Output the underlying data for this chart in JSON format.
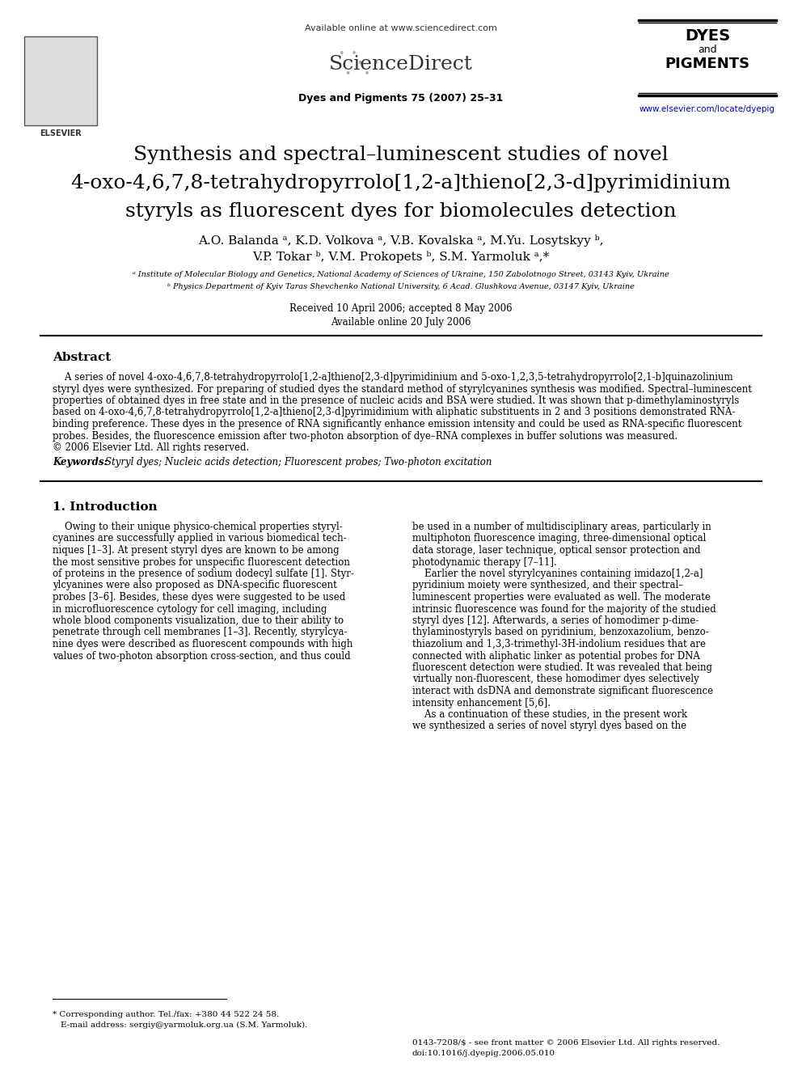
{
  "bg_color": "#ffffff",
  "header": {
    "available_online": "Available online at www.sciencedirect.com",
    "journal_name": "Dyes and Pigments 75 (2007) 25–31",
    "sd_text": "ScienceDirect",
    "journal_logo_text": "DYES\nand\nPIGMENTS",
    "website": "www.elsevier.com/locate/dyepig"
  },
  "title_lines": [
    "Synthesis and spectral–luminescent studies of novel",
    "4-oxo-4,6,7,8-tetrahydropyrrolo[1,2-a]thieno[2,3-d]pyrimidinium",
    "styryls as fluorescent dyes for biomolecules detection"
  ],
  "authors": "A.O. Balanda ᵃ, K.D. Volkova ᵃ, V.B. Kovalska ᵃ, M.Yu. Losytskyy ᵇ,",
  "authors2": "V.P. Tokar ᵇ, V.M. Prokopets ᵇ, S.M. Yarmoluk ᵃ,*",
  "affil_a": "ᵃ Institute of Molecular Biology and Genetics, National Academy of Sciences of Ukraine, 150 Zabolotnogo Street, 03143 Kyiv, Ukraine",
  "affil_b": "ᵇ Physics Department of Kyiv Taras Shevchenko National University, 6 Acad. Glushkova Avenue, 03147 Kyiv, Ukraine",
  "received": "Received 10 April 2006; accepted 8 May 2006",
  "available": "Available online 20 July 2006",
  "abstract_title": "Abstract",
  "abstract_text": "    A series of novel 4-oxo-4,6,7,8-tetrahydropyrrolo[1,2-a]thieno[2,3-d]pyrimidinium and 5-oxo-1,2,3,5-tetrahydropyrrolo[2,1-b]quinazolinium styryl dyes were synthesized. For preparing of studied dyes the standard method of styrylcyanines synthesis was modified. Spectral–luminescent properties of obtained dyes in free state and in the presence of nucleic acids and BSA were studied. It was shown that p-dimethylaminostyryls based on 4-oxo-4,6,7,8-tetrahydropyrrolo[1,2-a]thieno[2,3-d]pyrimidinium with aliphatic substituents in 2 and 3 positions demonstrated RNA-binding preference. These dyes in the presence of RNA significantly enhance emission intensity and could be used as RNA-specific fluorescent probes. Besides, the fluorescence emission after two-photon absorption of dye–RNA complexes in buffer solutions was measured.\n© 2006 Elsevier Ltd. All rights reserved.",
  "keywords_label": "Keywords: ",
  "keywords_text": "Styryl dyes; Nucleic acids detection; Fluorescent probes; Two-photon excitation",
  "section1_title": "1. Introduction",
  "intro_col1": "    Owing to their unique physico-chemical properties styryl-cyanines are successfully applied in various biomedical techniques [1–3]. At present styryl dyes are known to be among the most sensitive probes for unspecific fluorescent detection of proteins in the presence of sodium dodecyl sulfate [1]. Styrylcyanines were also proposed as DNA-specific fluorescent probes [3–6]. Besides, these dyes were suggested to be used in microfluorescence cytology for cell imaging, including whole blood components visualization, due to their ability to penetrate through cell membranes [1–3]. Recently, styrylcyanine dyes were described as fluorescent compounds with high values of two-photon absorption cross-section, and thus could",
  "intro_col2": "be used in a number of multidisciplinary areas, particularly in multiphoton fluorescence imaging, three-dimensional optical data storage, laser technique, optical sensor protection and photodynamic therapy [7–11].\n    Earlier the novel styrylcyanines containing imidazo[1,2-a] pyridinium moiety were synthesized, and their spectral-luminescent properties were evaluated as well. The moderate intrinsic fluorescence was found for the majority of the studied styryl dyes [12]. Afterwards, a series of homodimer p-dimethylaminostyryls based on pyridinium, benzoxazolium, benzothiazolium and 1,3,3-trimethyl-3H-indolium residues that are connected with aliphatic linker as potential probes for DNA fluorescent detection were studied. It was revealed that being virtually non-fluorescent, these homodimer dyes selectively interact with dsDNA and demonstrate significant fluorescence intensity enhancement [5,6].\n    As a continuation of these studies, in the present work we synthesized a series of novel styryl dyes based on the",
  "footer_left": "* Corresponding author. Tel./fax: +380 44 522 24 58.\n  E-mail address: sergiy@yarmoluk.org.ua (S.M. Yarmoluk).",
  "footer_right": "0143-7208/$ - see front matter © 2006 Elsevier Ltd. All rights reserved.\ndoi:10.1016/j.dyepig.2006.05.010"
}
